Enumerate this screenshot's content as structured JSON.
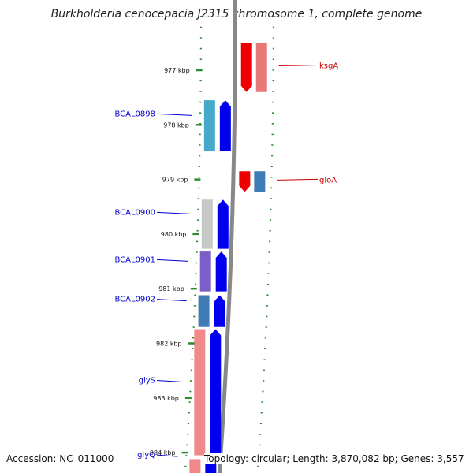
{
  "title": "Burkholderia cenocepacia J2315 chromosome 1, complete genome",
  "accession": "Accession: NC_011000",
  "topology": "Topology: circular; Length: 3,870,082 bp; Genes: 3,557",
  "ticks": [
    {
      "kbp": 977,
      "label": "977 kbp"
    },
    {
      "kbp": 978,
      "label": "978 kbp"
    },
    {
      "kbp": 979,
      "label": "979 kbp"
    },
    {
      "kbp": 980,
      "label": "980 kbp"
    },
    {
      "kbp": 981,
      "label": "981 kbp"
    },
    {
      "kbp": 982,
      "label": "982 kbp"
    },
    {
      "kbp": 983,
      "label": "983 kbp"
    },
    {
      "kbp": 984,
      "label": "984 kbp"
    }
  ],
  "genes": [
    {
      "label": "BCAL0898",
      "strand": "forward",
      "start_kbp": 977.55,
      "end_kbp": 978.48,
      "cog": "#45a9c9",
      "label_color": "#0000cc"
    },
    {
      "label": "BCAL0900",
      "strand": "forward",
      "start_kbp": 979.37,
      "end_kbp": 980.27,
      "cog": "#c8c8c8",
      "label_color": "#0000cc"
    },
    {
      "label": "BCAL0901",
      "strand": "forward",
      "start_kbp": 980.32,
      "end_kbp": 981.05,
      "cog": "#7b5ec8",
      "label_color": "#0000cc"
    },
    {
      "label": "BCAL0902",
      "strand": "forward",
      "start_kbp": 981.12,
      "end_kbp": 981.7,
      "cog": "#3f7bb4",
      "label_color": "#0000cc"
    },
    {
      "label": "glyS",
      "strand": "forward",
      "start_kbp": 981.74,
      "end_kbp": 984.05,
      "cog": "#f08a8a",
      "label_color": "#0000cc"
    },
    {
      "label": "glyQ",
      "strand": "forward",
      "start_kbp": 984.12,
      "end_kbp": 984.4,
      "cog": "#f08a8a",
      "label_color": "#0000cc"
    },
    {
      "label": "ksgA",
      "strand": "reverse",
      "start_kbp": 976.5,
      "end_kbp": 977.4,
      "cog": "#e87878",
      "label_color": "#cc0000"
    },
    {
      "label": "gloA",
      "strand": "reverse",
      "start_kbp": 978.85,
      "end_kbp": 979.23,
      "cog": "#3f7bb4",
      "label_color": "#cc0000"
    }
  ],
  "colors": {
    "forward_cds": "#0000ee",
    "reverse_cds": "#ee0000",
    "backbone": "#888888",
    "tick": "#2e8b2e"
  }
}
